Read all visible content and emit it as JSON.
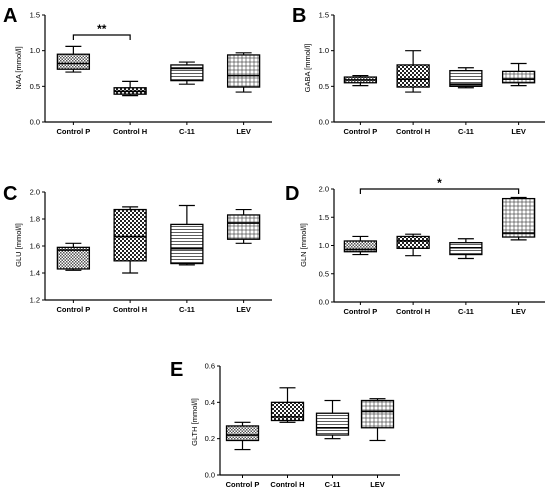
{
  "chart_data": [
    {
      "id": "A",
      "type": "boxplot",
      "panel_label": "A",
      "ylabel": "NAA [mmol/l]",
      "ylim": [
        0.0,
        1.5
      ],
      "yticks": [
        "0.0",
        "0.5",
        "1.0",
        "1.5"
      ],
      "categories": [
        "Control P",
        "Control H",
        "C-11",
        "LEV"
      ],
      "boxes": [
        {
          "min": 0.7,
          "q1": 0.74,
          "median": 0.82,
          "q3": 0.95,
          "max": 1.06
        },
        {
          "min": 0.37,
          "q1": 0.39,
          "median": 0.43,
          "q3": 0.48,
          "max": 0.57
        },
        {
          "min": 0.53,
          "q1": 0.58,
          "median": 0.75,
          "q3": 0.8,
          "max": 0.84
        },
        {
          "min": 0.42,
          "q1": 0.49,
          "median": 0.65,
          "q3": 0.94,
          "max": 0.97
        }
      ],
      "significance": [
        {
          "from": 0,
          "to": 1,
          "label": "**",
          "y": 1.22
        }
      ]
    },
    {
      "id": "B",
      "type": "boxplot",
      "panel_label": "B",
      "ylabel": "GABA [mmol/l]",
      "ylim": [
        0.0,
        1.5
      ],
      "yticks": [
        "0.0",
        "0.5",
        "1.0",
        "1.5"
      ],
      "categories": [
        "Control P",
        "Control H",
        "C-11",
        "LEV"
      ],
      "boxes": [
        {
          "min": 0.51,
          "q1": 0.55,
          "median": 0.59,
          "q3": 0.63,
          "max": 0.65
        },
        {
          "min": 0.42,
          "q1": 0.49,
          "median": 0.6,
          "q3": 0.8,
          "max": 1.0
        },
        {
          "min": 0.48,
          "q1": 0.5,
          "median": 0.53,
          "q3": 0.72,
          "max": 0.76
        },
        {
          "min": 0.51,
          "q1": 0.55,
          "median": 0.6,
          "q3": 0.71,
          "max": 0.82
        }
      ],
      "significance": []
    },
    {
      "id": "C",
      "type": "boxplot",
      "panel_label": "C",
      "ylabel": "GLU [mmol/l]",
      "ylim": [
        1.2,
        2.0
      ],
      "yticks": [
        "1.2",
        "1.4",
        "1.6",
        "1.8",
        "2.0"
      ],
      "categories": [
        "Control P",
        "Control H",
        "C-11",
        "LEV"
      ],
      "boxes": [
        {
          "min": 1.42,
          "q1": 1.43,
          "median": 1.57,
          "q3": 1.59,
          "max": 1.62
        },
        {
          "min": 1.4,
          "q1": 1.49,
          "median": 1.67,
          "q3": 1.87,
          "max": 1.89
        },
        {
          "min": 1.46,
          "q1": 1.47,
          "median": 1.58,
          "q3": 1.76,
          "max": 1.9
        },
        {
          "min": 1.62,
          "q1": 1.65,
          "median": 1.77,
          "q3": 1.83,
          "max": 1.87
        }
      ],
      "significance": []
    },
    {
      "id": "D",
      "type": "boxplot",
      "panel_label": "D",
      "ylabel": "GLN [mmol/l]",
      "ylim": [
        0.0,
        2.0
      ],
      "yticks": [
        "0.0",
        "0.5",
        "1.0",
        "1.5",
        "2.0"
      ],
      "categories": [
        "Control P",
        "Control H",
        "C-11",
        "LEV"
      ],
      "boxes": [
        {
          "min": 0.84,
          "q1": 0.89,
          "median": 0.93,
          "q3": 1.08,
          "max": 1.16
        },
        {
          "min": 0.82,
          "q1": 0.95,
          "median": 1.08,
          "q3": 1.16,
          "max": 1.2
        },
        {
          "min": 0.77,
          "q1": 0.84,
          "median": 0.96,
          "q3": 1.05,
          "max": 1.12
        },
        {
          "min": 1.1,
          "q1": 1.15,
          "median": 1.22,
          "q3": 1.83,
          "max": 1.85
        }
      ],
      "significance": [
        {
          "from": 0,
          "to": 3,
          "label": "*",
          "y": 2.0
        }
      ]
    },
    {
      "id": "E",
      "type": "boxplot",
      "panel_label": "E",
      "ylabel": "GLTH [mmol/l]",
      "ylim": [
        0.0,
        0.6
      ],
      "yticks": [
        "0.0",
        "0.2",
        "0.4",
        "0.6"
      ],
      "categories": [
        "Control P",
        "Control H",
        "C-11",
        "LEV"
      ],
      "boxes": [
        {
          "min": 0.14,
          "q1": 0.19,
          "median": 0.22,
          "q3": 0.27,
          "max": 0.29
        },
        {
          "min": 0.29,
          "q1": 0.3,
          "median": 0.32,
          "q3": 0.4,
          "max": 0.48
        },
        {
          "min": 0.2,
          "q1": 0.22,
          "median": 0.26,
          "q3": 0.34,
          "max": 0.41
        },
        {
          "min": 0.19,
          "q1": 0.26,
          "median": 0.35,
          "q3": 0.41,
          "max": 0.42
        }
      ],
      "significance": []
    }
  ]
}
